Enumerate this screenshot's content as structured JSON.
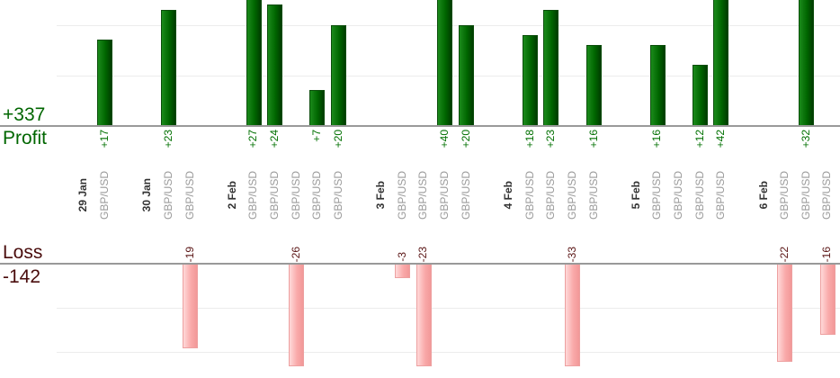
{
  "chart_data": {
    "type": "bar",
    "orientation": "vertical",
    "gridline_interval": 10,
    "profit": {
      "total_label": "+337",
      "axis_label": "Profit",
      "bar_color": "#006600",
      "text_color": "#007000"
    },
    "loss": {
      "total_label": "-142",
      "axis_label": "Loss",
      "bar_color": "#f9aaaa",
      "text_color": "#4a0d0d"
    },
    "groups": [
      {
        "date": "29 Jan",
        "trades": [
          {
            "symbol": "GBP/USD",
            "value": 17,
            "label": "+17"
          }
        ]
      },
      {
        "date": "30 Jan",
        "trades": [
          {
            "symbol": "GBP/USD",
            "value": 23,
            "label": "+23"
          },
          {
            "symbol": "GBP/USD",
            "value": -19,
            "label": "-19"
          }
        ]
      },
      {
        "date": "2 Feb",
        "trades": [
          {
            "symbol": "GBP/USD",
            "value": 27,
            "label": "+27"
          },
          {
            "symbol": "GBP/USD",
            "value": 24,
            "label": "+24"
          },
          {
            "symbol": "GBP/USD",
            "value": -26,
            "label": "-26"
          },
          {
            "symbol": "GBP/USD",
            "value": 7,
            "label": "+7"
          },
          {
            "symbol": "GBP/USD",
            "value": 20,
            "label": "+20"
          }
        ]
      },
      {
        "date": "3 Feb",
        "trades": [
          {
            "symbol": "GBP/USD",
            "value": -3,
            "label": "-3"
          },
          {
            "symbol": "GBP/USD",
            "value": -23,
            "label": "-23"
          },
          {
            "symbol": "GBP/USD",
            "value": 40,
            "label": "+40"
          },
          {
            "symbol": "GBP/USD",
            "value": 20,
            "label": "+20"
          }
        ]
      },
      {
        "date": "4 Feb",
        "trades": [
          {
            "symbol": "GBP/USD",
            "value": 18,
            "label": "+18"
          },
          {
            "symbol": "GBP/USD",
            "value": 23,
            "label": "+23"
          },
          {
            "symbol": "GBP/USD",
            "value": -33,
            "label": "-33"
          },
          {
            "symbol": "GBP/USD",
            "value": 16,
            "label": "+16"
          }
        ]
      },
      {
        "date": "5 Feb",
        "trades": [
          {
            "symbol": "GBP/USD",
            "value": 16,
            "label": "+16"
          },
          {
            "symbol": "GBP/USD",
            "value": 0,
            "label": ""
          },
          {
            "symbol": "GBP/USD",
            "value": 12,
            "label": "+12"
          },
          {
            "symbol": "GBP/USD",
            "value": 42,
            "label": "+42"
          }
        ]
      },
      {
        "date": "6 Feb",
        "trades": [
          {
            "symbol": "GBP/USD",
            "value": -22,
            "label": "-22"
          },
          {
            "symbol": "GBP/USD",
            "value": 32,
            "label": "+32"
          },
          {
            "symbol": "GBP/USD",
            "value": -16,
            "label": "-16"
          }
        ]
      }
    ]
  }
}
